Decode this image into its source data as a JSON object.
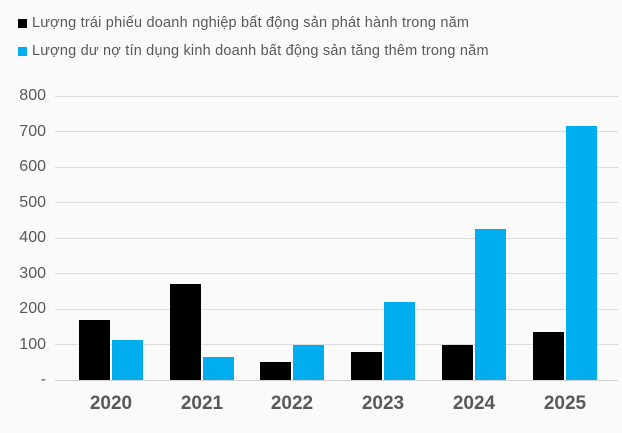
{
  "background": "#fafafa",
  "legend": {
    "items": [
      {
        "key": "bond-issuance",
        "label": "Lượng trái phiếu doanh nghiệp bất động sản phát hành trong năm",
        "color": "#000000"
      },
      {
        "key": "credit-growth",
        "label": "Lượng dư nợ tín dụng kinh doanh bất động sản tăng thêm trong năm",
        "color": "#00aeef"
      }
    ]
  },
  "chart_data": {
    "type": "bar",
    "title": "",
    "xlabel": "",
    "ylabel": "",
    "categories": [
      "2020",
      "2021",
      "2022",
      "2023",
      "2024",
      "2025"
    ],
    "series": [
      {
        "key": "bond-issuance",
        "name": "Lượng trái phiếu doanh nghiệp bất động sản phát hành trong năm",
        "color": "#000000",
        "values": [
          170,
          270,
          50,
          78,
          100,
          135
        ]
      },
      {
        "key": "credit-growth",
        "name": "Lượng dư nợ tín dụng kinh doanh bất động sản tăng thêm trong năm",
        "color": "#00aeef",
        "values": [
          113,
          65,
          100,
          220,
          425,
          715
        ]
      }
    ],
    "ylim": [
      0,
      800
    ],
    "y_ticks": [
      {
        "label": "800",
        "value": 800
      },
      {
        "label": "700",
        "value": 700
      },
      {
        "label": "600",
        "value": 600
      },
      {
        "label": "500",
        "value": 500
      },
      {
        "label": "400",
        "value": 400
      },
      {
        "label": "300",
        "value": 300
      },
      {
        "label": "200",
        "value": 200
      },
      {
        "label": "100",
        "value": 100
      },
      {
        "label": "-",
        "value": 0
      }
    ],
    "grid": true,
    "legend_position": "top-left",
    "colors": {
      "grid": "#dcdcdc",
      "axis_text": "#595959"
    }
  }
}
